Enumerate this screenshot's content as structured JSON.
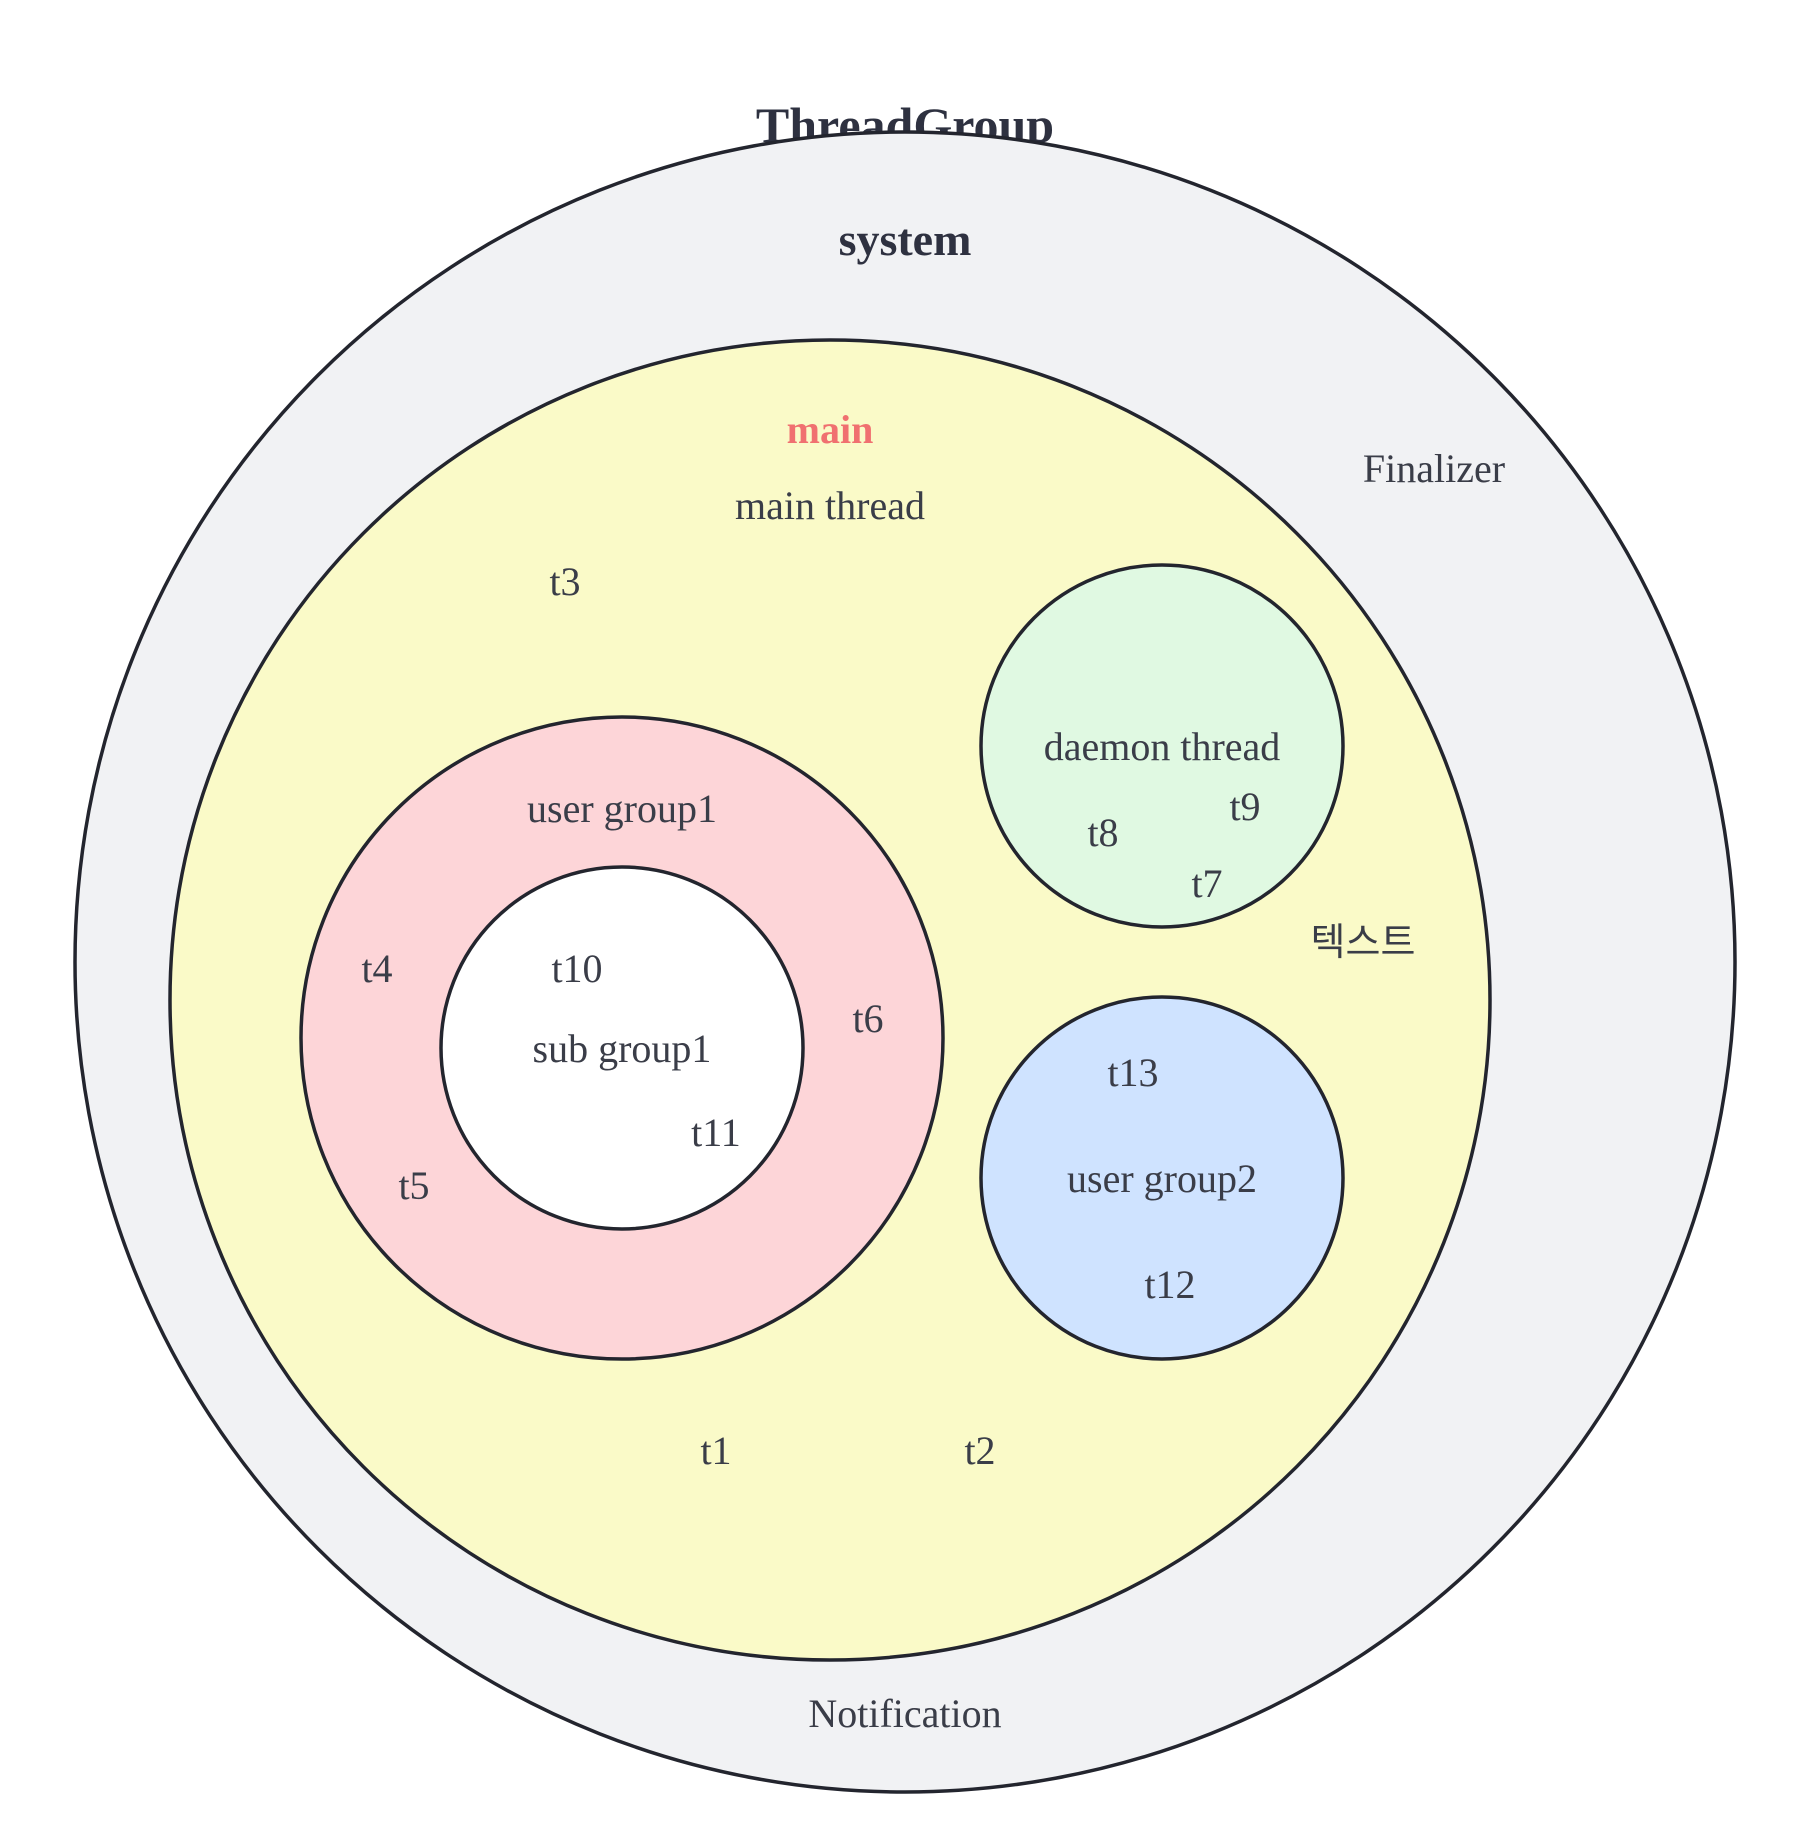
{
  "title": "ThreadGroup",
  "groups": {
    "system": {
      "label": "system",
      "fill": "#f1f2f4",
      "threads": [
        "Finalizer",
        "Notification"
      ]
    },
    "main": {
      "label": "main",
      "label_color": "#f07070",
      "fill": "#fafac8",
      "threads": [
        "main thread",
        "t3",
        "t1",
        "t2"
      ],
      "note": "텍스트"
    },
    "daemon": {
      "label": "daemon thread",
      "fill": "#e0f9e2",
      "threads": [
        "t8",
        "t9",
        "t7"
      ]
    },
    "user_group1": {
      "label": "user group1",
      "fill": "#fdd5d8",
      "threads": [
        "t4",
        "t6",
        "t5"
      ]
    },
    "sub_group1": {
      "label": "sub group1",
      "fill": "#ffffff",
      "threads": [
        "t10",
        "t11"
      ]
    },
    "user_group2": {
      "label": "user group2",
      "fill": "#cfe3ff",
      "threads": [
        "t13",
        "t12"
      ]
    }
  },
  "stroke_color": "#23252e"
}
